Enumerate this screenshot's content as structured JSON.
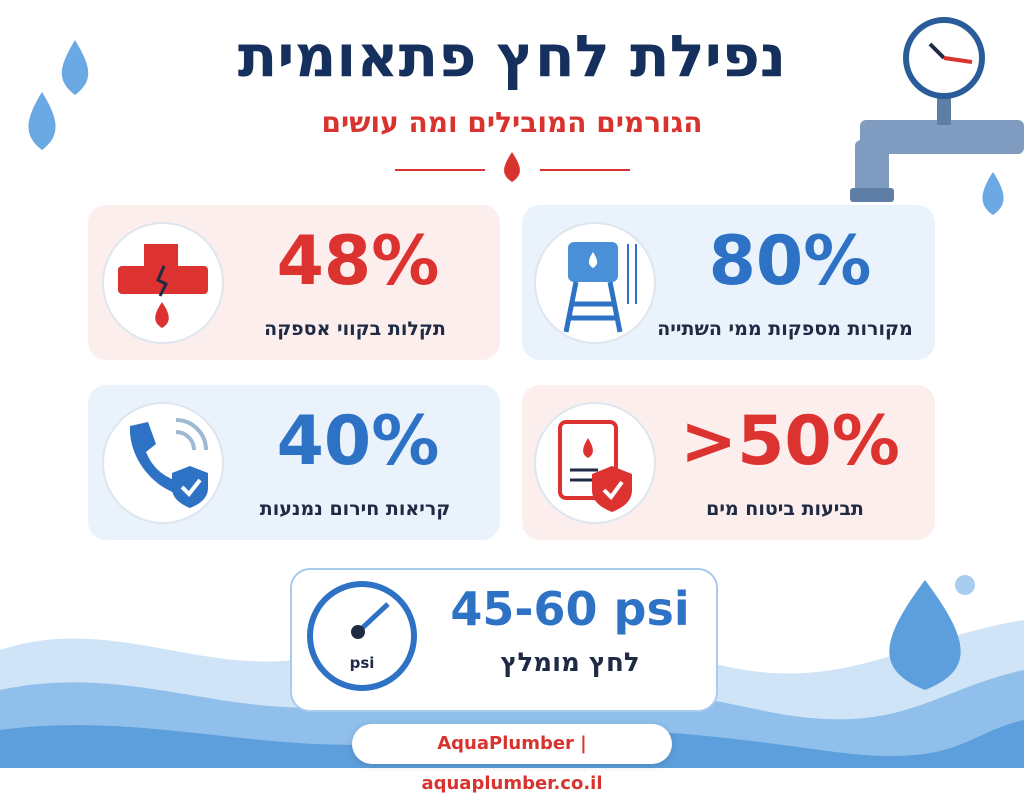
{
  "header": {
    "title": "נפילת לחץ פתאומית",
    "subtitle": "הגורמים המובילים ומה עושים"
  },
  "stats": [
    {
      "value": "80%",
      "label": "מקורות מספקות ממי השתייה"
    },
    {
      "value": "48%",
      "label": "תקלות בקווי אספקה"
    },
    {
      "value": ">50%",
      "label": "תביעות ביטוח מים"
    },
    {
      "value": "40%",
      "label": "קריאות חירום נמנעות"
    }
  ],
  "recommended": {
    "value": "45-60 psi",
    "label": "לחץ מומלץ",
    "gauge_label": "psi"
  },
  "footer": "AquaPlumber | aquaplumber.co.il"
}
